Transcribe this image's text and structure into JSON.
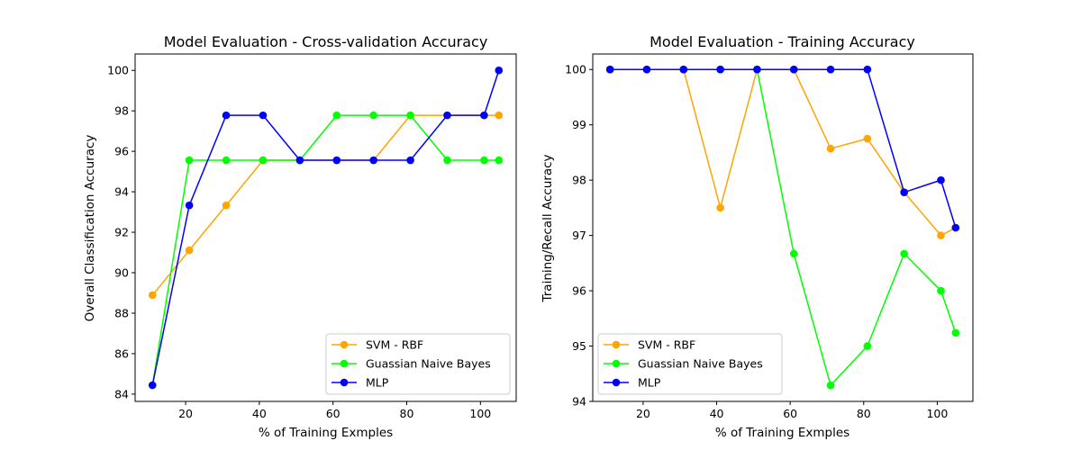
{
  "chart_data": [
    {
      "type": "line",
      "title": "Model Evaluation - Cross-validation Accuracy",
      "xlabel": "% of Training Exmples",
      "ylabel": "Overall Classification Accuracy",
      "xlim": [
        6.3,
        109.7
      ],
      "ylim": [
        83.64,
        100.81
      ],
      "xticks": [
        20,
        40,
        60,
        80,
        100
      ],
      "yticks": [
        84,
        86,
        88,
        90,
        92,
        94,
        96,
        98,
        100
      ],
      "x": [
        11,
        21,
        31,
        41,
        51,
        61,
        71,
        81,
        91,
        101,
        105
      ],
      "grid": false,
      "legend_position": "lower right",
      "series": [
        {
          "name": "SVM - RBF",
          "color": "#ffa500",
          "values": [
            88.89,
            91.11,
            93.33,
            95.56,
            95.56,
            95.56,
            95.56,
            97.78,
            97.78,
            97.78,
            97.78
          ]
        },
        {
          "name": "Guassian Naive Bayes",
          "color": "#00ff00",
          "values": [
            84.44,
            95.56,
            95.56,
            95.56,
            95.56,
            97.78,
            97.78,
            97.78,
            95.56,
            95.56,
            95.56
          ]
        },
        {
          "name": "MLP",
          "color": "#0000ff",
          "values": [
            84.44,
            93.33,
            97.78,
            97.78,
            95.56,
            95.56,
            95.56,
            95.56,
            97.78,
            97.78,
            100.0
          ]
        }
      ]
    },
    {
      "type": "line",
      "title": "Model Evaluation - Training Accuracy",
      "xlabel": "% of Training Exmples",
      "ylabel": "Training/Recall Accuracy",
      "xlim": [
        6.3,
        109.7
      ],
      "ylim": [
        94.0,
        100.28
      ],
      "xticks": [
        20,
        40,
        60,
        80,
        100
      ],
      "yticks": [
        94,
        95,
        96,
        97,
        98,
        99,
        100
      ],
      "x": [
        11,
        21,
        31,
        41,
        51,
        61,
        71,
        81,
        91,
        101,
        105
      ],
      "grid": false,
      "legend_position": "lower left",
      "series": [
        {
          "name": "SVM - RBF",
          "color": "#ffa500",
          "values": [
            100.0,
            100.0,
            100.0,
            97.5,
            100.0,
            100.0,
            98.57,
            98.75,
            97.78,
            97.0,
            97.14
          ]
        },
        {
          "name": "Guassian Naive Bayes",
          "color": "#00ff00",
          "values": [
            100.0,
            100.0,
            100.0,
            100.0,
            100.0,
            96.67,
            94.29,
            95.0,
            96.67,
            96.0,
            95.24
          ]
        },
        {
          "name": "MLP",
          "color": "#0000ff",
          "values": [
            100.0,
            100.0,
            100.0,
            100.0,
            100.0,
            100.0,
            100.0,
            100.0,
            97.78,
            98.0,
            97.14
          ]
        }
      ]
    }
  ]
}
